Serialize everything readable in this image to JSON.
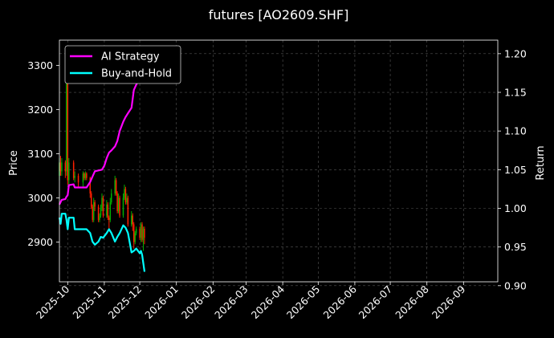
{
  "chart_data": {
    "type": "line",
    "title": "futures [AO2609.SHF]",
    "ylabel_left": "Price",
    "ylabel_right": "Return",
    "x_ticks": [
      "2025-10",
      "2025-11",
      "2025-12",
      "2026-01",
      "2026-02",
      "2026-03",
      "2026-04",
      "2026-05",
      "2026-06",
      "2026-07",
      "2026-08",
      "2026-09"
    ],
    "x_range": [
      "2025-09-24",
      "2026-09-30"
    ],
    "y_left": {
      "ticks": [
        2900,
        3000,
        3100,
        3200,
        3300
      ],
      "range": [
        2810,
        3357
      ]
    },
    "y_right": {
      "ticks": [
        0.9,
        0.95,
        1.0,
        1.05,
        1.1,
        1.15,
        1.2
      ],
      "range": [
        0.905,
        1.2175
      ]
    },
    "grid": true,
    "legend_position": "top-left",
    "colors": {
      "up": "#00b000",
      "down": "#ff2000",
      "ai": "#ff00ff",
      "bh": "#00ffff",
      "grid": "#555555"
    },
    "legend": [
      {
        "name": "AI Strategy",
        "color": "#ff00ff"
      },
      {
        "name": "Buy-and-Hold",
        "color": "#00ffff"
      }
    ],
    "series": [
      {
        "name": "AI Strategy",
        "axis": "right",
        "points": [
          [
            "2025-09-24",
            1.005
          ],
          [
            "2025-09-26",
            1.011
          ],
          [
            "2025-09-29",
            1.012
          ],
          [
            "2025-09-30",
            1.015
          ],
          [
            "2025-10-01",
            1.017
          ],
          [
            "2025-10-02",
            1.03
          ],
          [
            "2025-10-06",
            1.031
          ],
          [
            "2025-10-07",
            1.027
          ],
          [
            "2025-10-10",
            1.027
          ],
          [
            "2025-10-15",
            1.027
          ],
          [
            "2025-10-17",
            1.027
          ],
          [
            "2025-10-20",
            1.034
          ],
          [
            "2025-10-22",
            1.041
          ],
          [
            "2025-10-24",
            1.048
          ],
          [
            "2025-10-27",
            1.049
          ],
          [
            "2025-10-30",
            1.05
          ],
          [
            "2025-11-01",
            1.055
          ],
          [
            "2025-11-03",
            1.065
          ],
          [
            "2025-11-05",
            1.072
          ],
          [
            "2025-11-07",
            1.075
          ],
          [
            "2025-11-10",
            1.08
          ],
          [
            "2025-11-12",
            1.087
          ],
          [
            "2025-11-14",
            1.1
          ],
          [
            "2025-11-17",
            1.112
          ],
          [
            "2025-11-19",
            1.118
          ],
          [
            "2025-11-21",
            1.123
          ],
          [
            "2025-11-24",
            1.13
          ],
          [
            "2025-11-26",
            1.153
          ],
          [
            "2025-11-28",
            1.16
          ],
          [
            "2025-12-01",
            1.168
          ],
          [
            "2025-12-03",
            1.175
          ]
        ]
      },
      {
        "name": "Buy-and-Hold",
        "axis": "right",
        "points": [
          [
            "2025-09-24",
            0.988
          ],
          [
            "2025-09-25",
            0.98
          ],
          [
            "2025-09-26",
            0.993
          ],
          [
            "2025-09-29",
            0.993
          ],
          [
            "2025-09-30",
            0.985
          ],
          [
            "2025-10-01",
            0.973
          ],
          [
            "2025-10-02",
            0.988
          ],
          [
            "2025-10-06",
            0.988
          ],
          [
            "2025-10-07",
            0.973
          ],
          [
            "2025-10-10",
            0.973
          ],
          [
            "2025-10-15",
            0.973
          ],
          [
            "2025-10-17",
            0.973
          ],
          [
            "2025-10-20",
            0.968
          ],
          [
            "2025-10-22",
            0.957
          ],
          [
            "2025-10-24",
            0.953
          ],
          [
            "2025-10-27",
            0.957
          ],
          [
            "2025-10-29",
            0.963
          ],
          [
            "2025-10-31",
            0.962
          ],
          [
            "2025-11-03",
            0.968
          ],
          [
            "2025-11-05",
            0.973
          ],
          [
            "2025-11-07",
            0.968
          ],
          [
            "2025-11-10",
            0.957
          ],
          [
            "2025-11-12",
            0.963
          ],
          [
            "2025-11-14",
            0.968
          ],
          [
            "2025-11-17",
            0.978
          ],
          [
            "2025-11-19",
            0.975
          ],
          [
            "2025-11-21",
            0.968
          ],
          [
            "2025-11-24",
            0.943
          ],
          [
            "2025-11-26",
            0.945
          ],
          [
            "2025-11-28",
            0.948
          ],
          [
            "2025-12-01",
            0.942
          ],
          [
            "2025-12-02",
            0.945
          ],
          [
            "2025-12-03",
            0.94
          ],
          [
            "2025-12-05",
            0.918
          ]
        ]
      }
    ],
    "candles": [
      [
        "2025-09-24",
        3050,
        3080,
        3040,
        3090
      ],
      [
        "2025-09-25",
        3080,
        3060,
        3050,
        3095
      ],
      [
        "2025-09-26",
        3060,
        3080,
        3050,
        3090
      ],
      [
        "2025-09-29",
        3080,
        3060,
        3045,
        3085
      ],
      [
        "2025-09-30",
        3060,
        3330,
        3050,
        3340
      ],
      [
        "2025-10-01",
        3330,
        3040,
        3030,
        3335
      ],
      [
        "2025-10-02",
        3040,
        3080,
        3030,
        3090
      ],
      [
        "2025-10-06",
        3080,
        3045,
        3040,
        3085
      ],
      [
        "2025-10-07",
        3045,
        3050,
        3035,
        3060
      ],
      [
        "2025-10-10",
        3050,
        3035,
        3025,
        3055
      ],
      [
        "2025-10-14",
        3035,
        3055,
        3025,
        3060
      ],
      [
        "2025-10-15",
        3055,
        3045,
        3040,
        3058
      ],
      [
        "2025-10-16",
        3045,
        3055,
        3040,
        3060
      ],
      [
        "2025-10-17",
        3055,
        3045,
        3040,
        3058
      ],
      [
        "2025-10-20",
        3045,
        3010,
        3000,
        3048
      ],
      [
        "2025-10-21",
        3010,
        2980,
        2975,
        3015
      ],
      [
        "2025-10-22",
        2980,
        2950,
        2945,
        2985
      ],
      [
        "2025-10-23",
        2950,
        2990,
        2945,
        3000
      ],
      [
        "2025-10-24",
        2990,
        2980,
        2970,
        2995
      ],
      [
        "2025-10-27",
        2980,
        2950,
        2945,
        2985
      ],
      [
        "2025-10-28",
        2950,
        2960,
        2945,
        2965
      ],
      [
        "2025-10-29",
        2960,
        2975,
        2955,
        2985
      ],
      [
        "2025-10-30",
        2975,
        3000,
        2970,
        3010
      ],
      [
        "2025-10-31",
        3000,
        2960,
        2955,
        3005
      ],
      [
        "2025-11-03",
        2960,
        2985,
        2955,
        2995
      ],
      [
        "2025-11-04",
        2985,
        2955,
        2950,
        2990
      ],
      [
        "2025-11-05",
        2955,
        2950,
        2930,
        2960
      ],
      [
        "2025-11-06",
        2950,
        2990,
        2945,
        3000
      ],
      [
        "2025-11-07",
        2990,
        3010,
        2985,
        3020
      ],
      [
        "2025-11-10",
        3010,
        3040,
        3005,
        3050
      ],
      [
        "2025-11-11",
        3040,
        3010,
        3005,
        3045
      ],
      [
        "2025-11-12",
        3010,
        2970,
        2965,
        3015
      ],
      [
        "2025-11-13",
        2970,
        3000,
        2965,
        3010
      ],
      [
        "2025-11-14",
        3000,
        2960,
        2955,
        3005
      ],
      [
        "2025-11-17",
        2960,
        3000,
        2955,
        3010
      ],
      [
        "2025-11-18",
        3000,
        3020,
        2995,
        3030
      ],
      [
        "2025-11-19",
        3020,
        2990,
        2985,
        3025
      ],
      [
        "2025-11-20",
        2990,
        3000,
        2985,
        3010
      ],
      [
        "2025-11-21",
        3000,
        2940,
        2935,
        3005
      ],
      [
        "2025-11-24",
        2940,
        2960,
        2935,
        2970
      ],
      [
        "2025-11-25",
        2960,
        2940,
        2925,
        2965
      ],
      [
        "2025-11-26",
        2940,
        2900,
        2885,
        2945
      ],
      [
        "2025-11-27",
        2900,
        2920,
        2895,
        2925
      ],
      [
        "2025-11-28",
        2920,
        2930,
        2915,
        2935
      ],
      [
        "2025-12-01",
        2930,
        2910,
        2905,
        2935
      ],
      [
        "2025-12-02",
        2910,
        2940,
        2900,
        2945
      ],
      [
        "2025-12-03",
        2940,
        2905,
        2900,
        2945
      ],
      [
        "2025-12-04",
        2905,
        2930,
        2880,
        2935
      ],
      [
        "2025-12-05",
        2930,
        2910,
        2895,
        2935
      ]
    ]
  }
}
